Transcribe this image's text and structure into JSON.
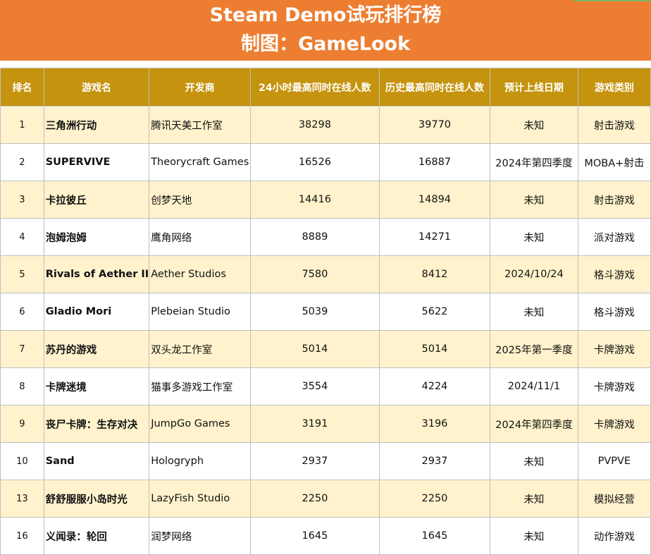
{
  "title": {
    "line1": "Steam Demo试玩排行榜",
    "line2": "制图：GameLook"
  },
  "colors": {
    "banner": "#ED7D31",
    "header": "#C5930D",
    "row_alt": "#FFF2CC"
  },
  "table": {
    "headers": [
      "排名",
      "游戏名",
      "开发商",
      "24小时最高同时在线人数",
      "历史最高同时在线人数",
      "预计上线日期",
      "游戏类别"
    ],
    "rows": [
      {
        "rank": "1",
        "name": "三角洲行动",
        "dev": "腾讯天美工作室",
        "peak24": "38298",
        "peakAll": "39770",
        "date": "未知",
        "genre": "射击游戏"
      },
      {
        "rank": "2",
        "name": "SUPERVIVE",
        "dev": "Theorycraft Games",
        "peak24": "16526",
        "peakAll": "16887",
        "date": "2024年第四季度",
        "genre": "MOBA+射击"
      },
      {
        "rank": "3",
        "name": "卡拉彼丘",
        "dev": "创梦天地",
        "peak24": "14416",
        "peakAll": "14894",
        "date": "未知",
        "genre": "射击游戏"
      },
      {
        "rank": "4",
        "name": "泡姆泡姆",
        "dev": "鹰角网络",
        "peak24": "8889",
        "peakAll": "14271",
        "date": "未知",
        "genre": "派对游戏"
      },
      {
        "rank": "5",
        "name": "Rivals of Aether II",
        "dev": "Aether Studios",
        "peak24": "7580",
        "peakAll": "8412",
        "date": "2024/10/24",
        "genre": "格斗游戏"
      },
      {
        "rank": "6",
        "name": "Gladio Mori",
        "dev": "Plebeian Studio",
        "peak24": "5039",
        "peakAll": "5622",
        "date": "未知",
        "genre": "格斗游戏"
      },
      {
        "rank": "7",
        "name": "苏丹的游戏",
        "dev": "双头龙工作室",
        "peak24": "5014",
        "peakAll": "5014",
        "date": "2025年第一季度",
        "genre": "卡牌游戏"
      },
      {
        "rank": "8",
        "name": "卡牌迷境",
        "dev": "猫事多游戏工作室",
        "peak24": "3554",
        "peakAll": "4224",
        "date": "2024/11/1",
        "genre": "卡牌游戏"
      },
      {
        "rank": "9",
        "name": "丧尸卡牌：生存对决",
        "dev": "JumpGo Games",
        "peak24": "3191",
        "peakAll": "3196",
        "date": "2024年第四季度",
        "genre": "卡牌游戏"
      },
      {
        "rank": "10",
        "name": "Sand",
        "dev": "Hologryph",
        "peak24": "2937",
        "peakAll": "2937",
        "date": "未知",
        "genre": "PVPVE"
      },
      {
        "rank": "13",
        "name": "舒舒服服小岛时光",
        "dev": "LazyFish Studio",
        "peak24": "2250",
        "peakAll": "2250",
        "date": "未知",
        "genre": "模拟经营"
      },
      {
        "rank": "16",
        "name": "义闻录：轮回",
        "dev": "润梦网络",
        "peak24": "1645",
        "peakAll": "1645",
        "date": "未知",
        "genre": "动作游戏"
      }
    ]
  }
}
